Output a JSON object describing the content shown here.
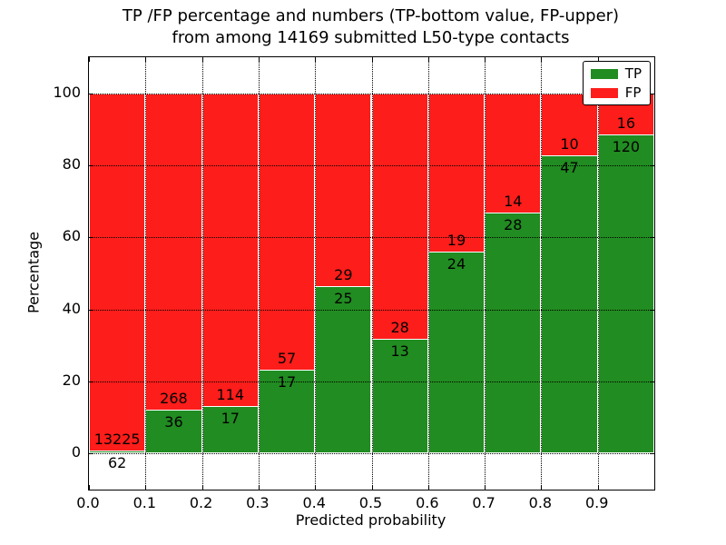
{
  "chart_data": {
    "type": "bar",
    "stacked": true,
    "title_line1": "TP /FP percentage and numbers (TP-bottom value, FP-upper)",
    "title_line2": "from among 14169 submitted L50-type contacts",
    "xlabel": "Predicted probability",
    "ylabel": "Percentage",
    "total_contacts": 14169,
    "xlim": [
      0,
      1
    ],
    "ylim": [
      -10,
      110
    ],
    "bar_width": 0.1,
    "grid": true,
    "x_tick_labels": [
      "0.0",
      "0.1",
      "0.2",
      "0.3",
      "0.4",
      "0.5",
      "0.6",
      "0.7",
      "0.8",
      "0.9"
    ],
    "x_tick_values": [
      0.0,
      0.1,
      0.2,
      0.3,
      0.4,
      0.5,
      0.6,
      0.7,
      0.8,
      0.9
    ],
    "y_tick_labels": [
      "0",
      "20",
      "40",
      "60",
      "80",
      "100"
    ],
    "y_tick_values": [
      0,
      20,
      40,
      60,
      80,
      100
    ],
    "bins": [
      {
        "x_start": 0.0,
        "tp": 62,
        "fp": 13225
      },
      {
        "x_start": 0.1,
        "tp": 36,
        "fp": 268
      },
      {
        "x_start": 0.2,
        "tp": 17,
        "fp": 114
      },
      {
        "x_start": 0.3,
        "tp": 17,
        "fp": 57
      },
      {
        "x_start": 0.4,
        "tp": 25,
        "fp": 29
      },
      {
        "x_start": 0.5,
        "tp": 13,
        "fp": 28
      },
      {
        "x_start": 0.6,
        "tp": 24,
        "fp": 19
      },
      {
        "x_start": 0.7,
        "tp": 28,
        "fp": 14
      },
      {
        "x_start": 0.8,
        "tp": 47,
        "fp": 10
      },
      {
        "x_start": 0.9,
        "tp": 120,
        "fp": 16
      }
    ],
    "legend": [
      {
        "label": "TP",
        "color": "#218c21"
      },
      {
        "label": "FP",
        "color": "#fd1d1a"
      }
    ],
    "legend_position": "upper right",
    "colors": {
      "tp": "#218c21",
      "fp": "#fd1d1a",
      "bar_edge": "#ffffff",
      "text": "#000000",
      "background": "#ffffff"
    }
  }
}
